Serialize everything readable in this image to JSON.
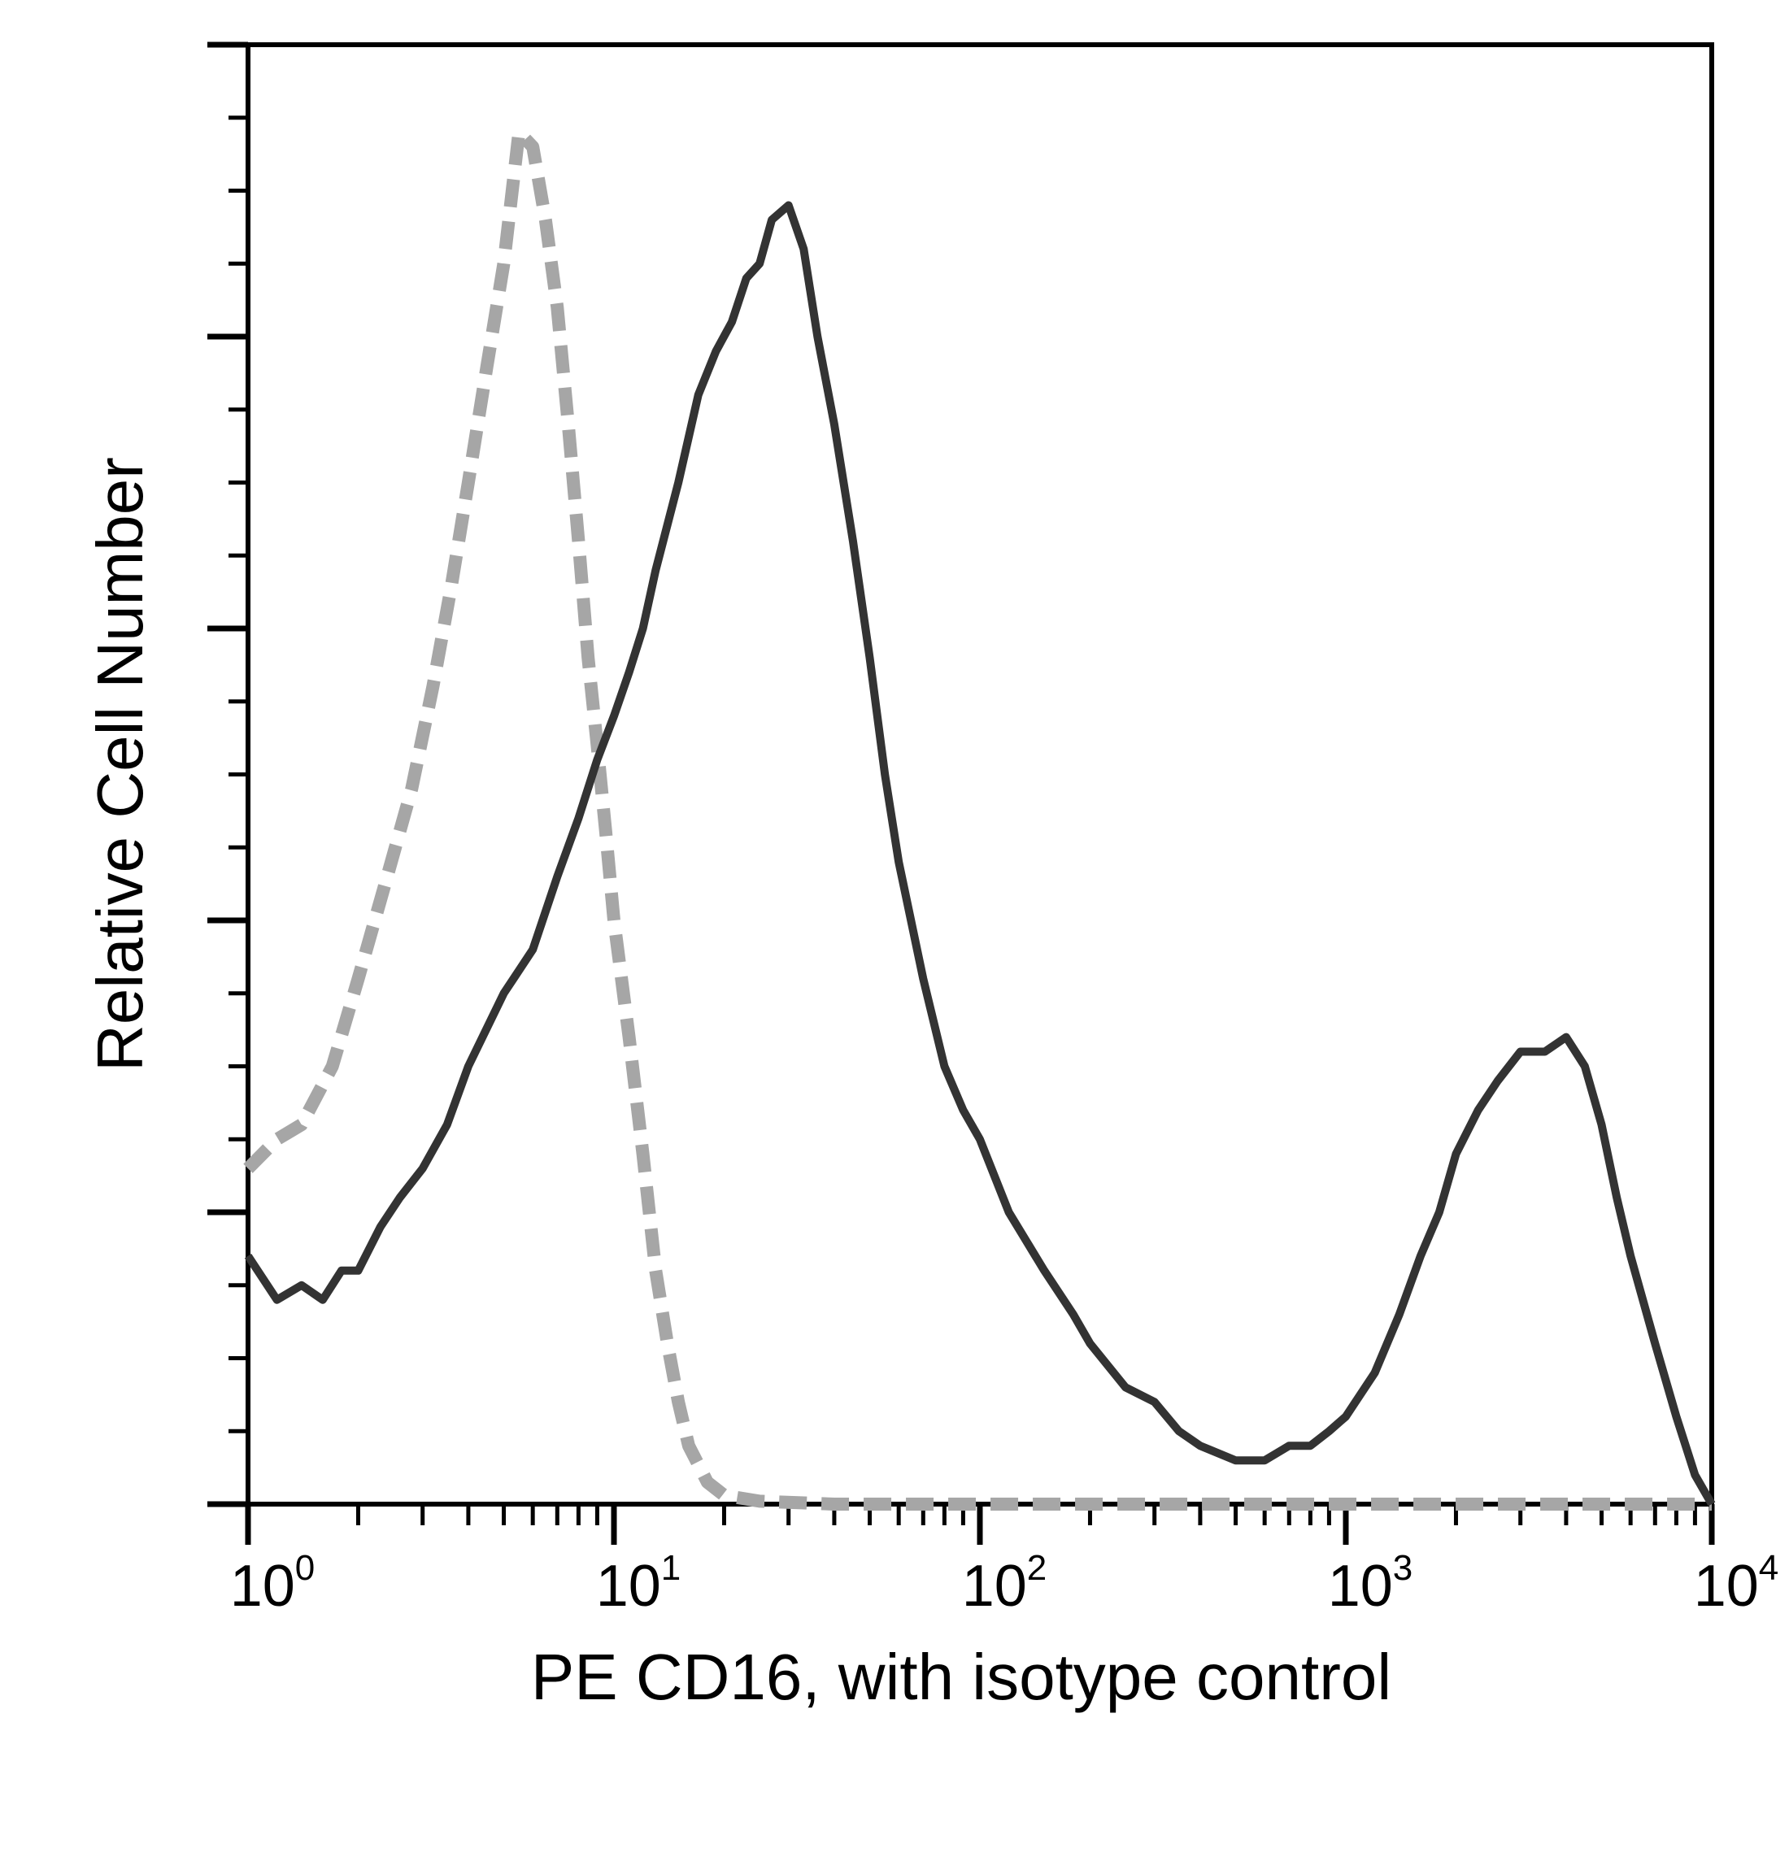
{
  "chart_data": {
    "type": "line",
    "title": "",
    "xlabel": "PE CD16, with isotype control",
    "ylabel": "Relative Cell Number",
    "x_scale": "log",
    "xlim": [
      1,
      10000
    ],
    "ylim": [
      0,
      100
    ],
    "x_ticks": [
      {
        "value": 1,
        "base": "10",
        "exp": "0"
      },
      {
        "value": 10,
        "base": "10",
        "exp": "1"
      },
      {
        "value": 100,
        "base": "10",
        "exp": "2"
      },
      {
        "value": 1000,
        "base": "10",
        "exp": "3"
      },
      {
        "value": 10000,
        "base": "10",
        "exp": "4"
      }
    ],
    "y_ticks_labeled": false,
    "grid": false,
    "legend": "none",
    "series": [
      {
        "style": "dashed",
        "color": "#a6a6a6",
        "points": [
          [
            1.0,
            23
          ],
          [
            1.2,
            25
          ],
          [
            1.4,
            26
          ],
          [
            1.7,
            30
          ],
          [
            2.0,
            36
          ],
          [
            2.4,
            43
          ],
          [
            2.8,
            49
          ],
          [
            3.2,
            56
          ],
          [
            3.6,
            63
          ],
          [
            4.0,
            70
          ],
          [
            4.5,
            78
          ],
          [
            5.0,
            85
          ],
          [
            5.5,
            94
          ],
          [
            6.0,
            93
          ],
          [
            6.5,
            88
          ],
          [
            7.0,
            82
          ],
          [
            7.5,
            74
          ],
          [
            8.0,
            66
          ],
          [
            8.5,
            58
          ],
          [
            9.0,
            52
          ],
          [
            9.5,
            46
          ],
          [
            10.0,
            40
          ],
          [
            11.0,
            32
          ],
          [
            12.0,
            24
          ],
          [
            13.0,
            16
          ],
          [
            14.0,
            11
          ],
          [
            15.0,
            7
          ],
          [
            16.0,
            4
          ],
          [
            18.0,
            1.5
          ],
          [
            20.0,
            0.6
          ],
          [
            25.0,
            0.2
          ],
          [
            40.0,
            0
          ],
          [
            100.0,
            0
          ],
          [
            1000.0,
            0
          ],
          [
            10000.0,
            0
          ]
        ]
      },
      {
        "style": "solid",
        "color": "#333333",
        "points": [
          [
            1.0,
            17
          ],
          [
            1.2,
            14
          ],
          [
            1.4,
            15
          ],
          [
            1.6,
            14
          ],
          [
            1.8,
            16
          ],
          [
            2.0,
            16
          ],
          [
            2.3,
            19
          ],
          [
            2.6,
            21
          ],
          [
            3.0,
            23
          ],
          [
            3.5,
            26
          ],
          [
            4.0,
            30
          ],
          [
            5.0,
            35
          ],
          [
            6.0,
            38
          ],
          [
            7.0,
            43
          ],
          [
            8.0,
            47
          ],
          [
            9.0,
            51
          ],
          [
            10.0,
            54
          ],
          [
            11.0,
            57
          ],
          [
            12.0,
            60
          ],
          [
            13.0,
            64
          ],
          [
            15.0,
            70
          ],
          [
            17.0,
            76
          ],
          [
            19.0,
            79
          ],
          [
            21.0,
            81
          ],
          [
            23.0,
            84
          ],
          [
            25.0,
            85
          ],
          [
            27.0,
            88
          ],
          [
            30.0,
            89
          ],
          [
            33.0,
            86
          ],
          [
            36.0,
            80
          ],
          [
            40.0,
            74
          ],
          [
            45.0,
            66
          ],
          [
            50.0,
            58
          ],
          [
            55.0,
            50
          ],
          [
            60.0,
            44
          ],
          [
            70.0,
            36
          ],
          [
            80.0,
            30
          ],
          [
            90.0,
            27
          ],
          [
            100.0,
            25
          ],
          [
            120.0,
            20
          ],
          [
            150.0,
            16
          ],
          [
            180.0,
            13
          ],
          [
            200.0,
            11
          ],
          [
            250.0,
            8
          ],
          [
            300.0,
            7
          ],
          [
            350.0,
            5
          ],
          [
            400.0,
            4
          ],
          [
            500.0,
            3
          ],
          [
            600.0,
            3
          ],
          [
            700.0,
            4
          ],
          [
            800.0,
            4
          ],
          [
            900.0,
            5
          ],
          [
            1000.0,
            6
          ],
          [
            1200.0,
            9
          ],
          [
            1400.0,
            13
          ],
          [
            1600.0,
            17
          ],
          [
            1800.0,
            20
          ],
          [
            2000.0,
            24
          ],
          [
            2300.0,
            27
          ],
          [
            2600.0,
            29
          ],
          [
            3000.0,
            31
          ],
          [
            3500.0,
            31
          ],
          [
            4000.0,
            32
          ],
          [
            4500.0,
            30
          ],
          [
            5000.0,
            26
          ],
          [
            5500.0,
            21
          ],
          [
            6000.0,
            17
          ],
          [
            7000.0,
            11
          ],
          [
            8000.0,
            6
          ],
          [
            9000.0,
            2
          ],
          [
            10000.0,
            0
          ]
        ]
      }
    ]
  }
}
